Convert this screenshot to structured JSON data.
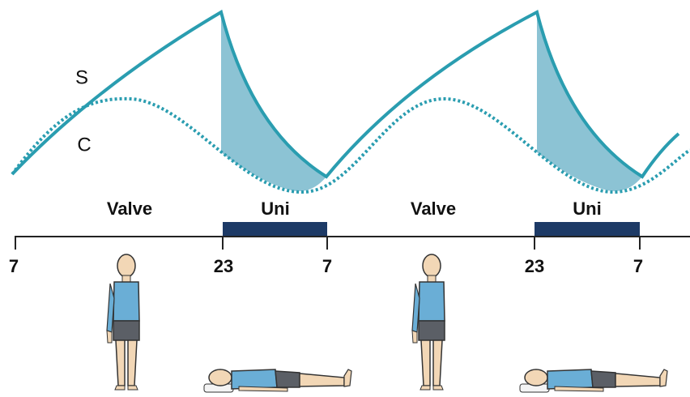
{
  "curves": {
    "s": "S",
    "c": "C"
  },
  "phases": [
    {
      "label": "Valve"
    },
    {
      "label": "Uni"
    },
    {
      "label": "Valve"
    },
    {
      "label": "Uni"
    }
  ],
  "ticks": [
    "7",
    "23",
    "7",
    "23",
    "7"
  ]
}
